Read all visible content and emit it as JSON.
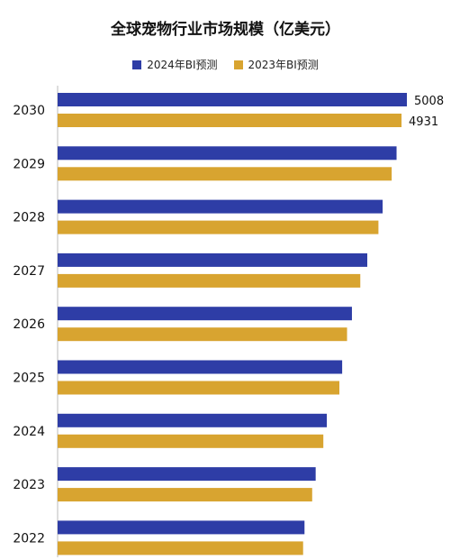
{
  "chart_data": {
    "type": "bar",
    "orientation": "horizontal",
    "title": "全球宠物行业市场规模（亿美元）",
    "categories": [
      "2030",
      "2029",
      "2028",
      "2027",
      "2026",
      "2025",
      "2024",
      "2023",
      "2022"
    ],
    "series": [
      {
        "name": "2024年BI预测",
        "color": "#2E3DA6",
        "values": [
          5008,
          4860,
          4660,
          4440,
          4220,
          4080,
          3860,
          3700,
          3540
        ]
      },
      {
        "name": "2023年BI预测",
        "color": "#D8A430",
        "values": [
          4931,
          4790,
          4600,
          4340,
          4150,
          4040,
          3810,
          3650,
          3520
        ]
      }
    ],
    "data_labels": {
      "2030": [
        "5008",
        "4931"
      ]
    },
    "xlim": [
      0,
      5008
    ],
    "legend_position": "top",
    "grid": false
  }
}
